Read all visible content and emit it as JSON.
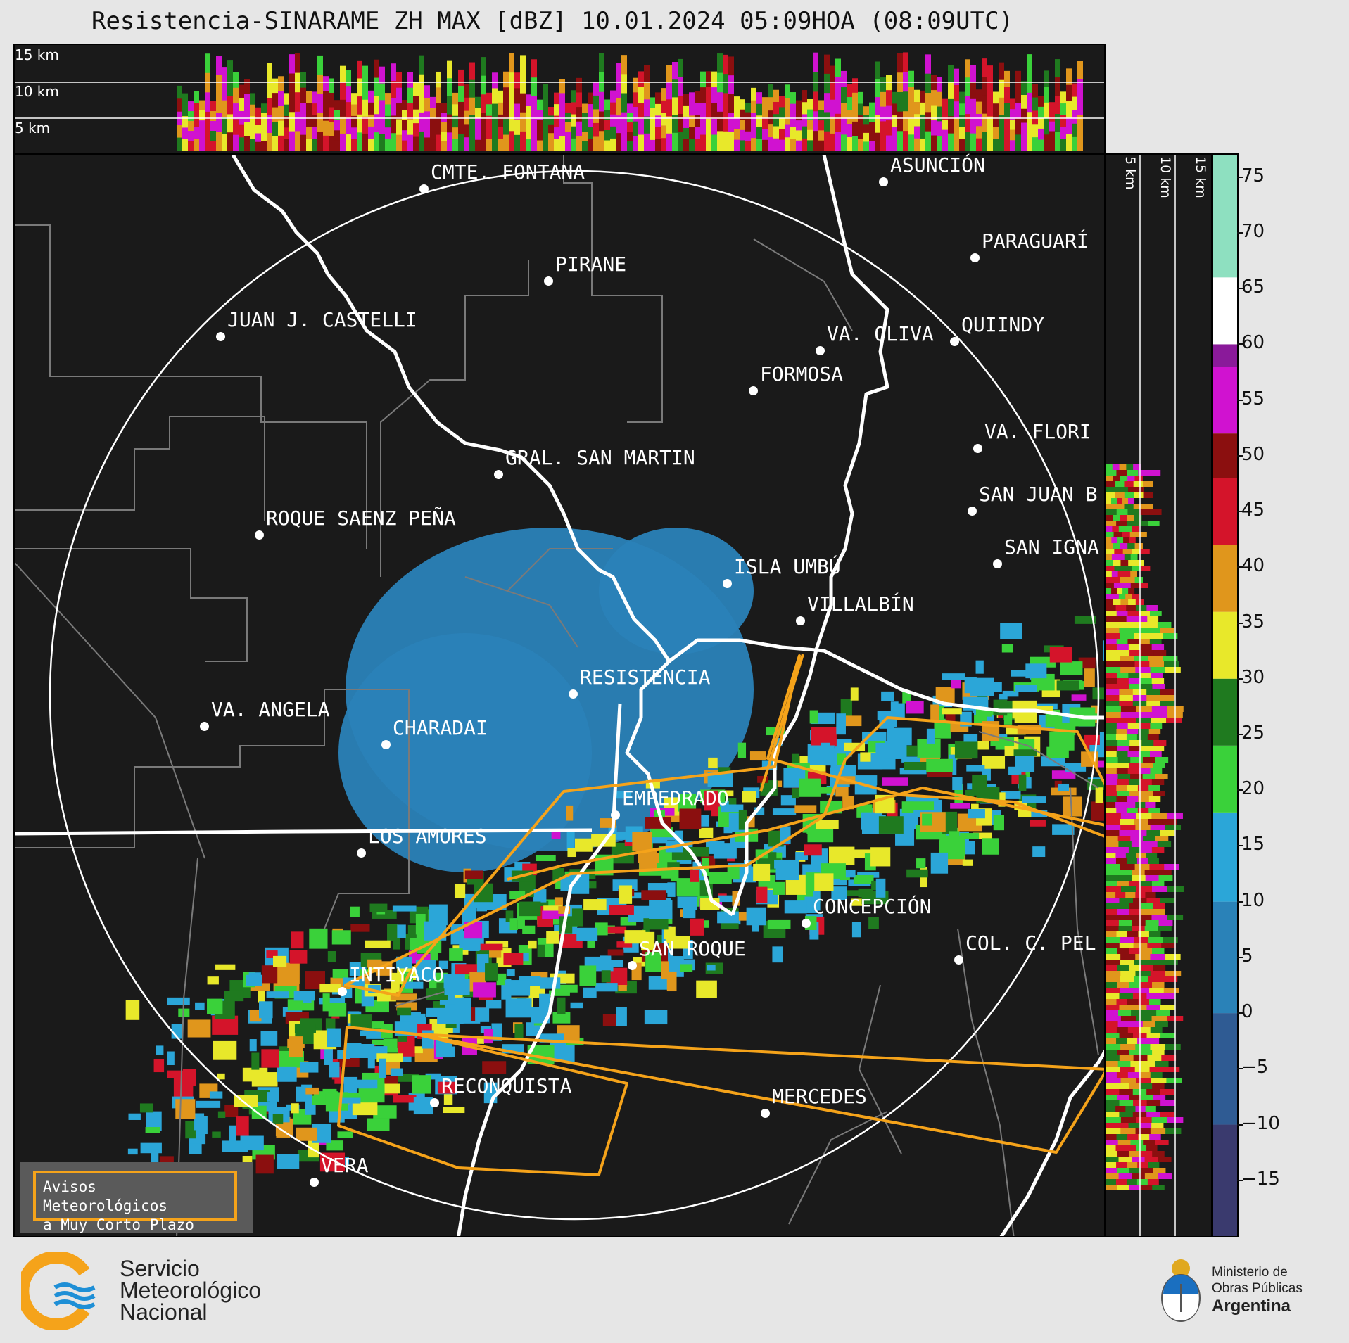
{
  "title": "Resistencia-SINARAME ZH MAX [dBZ] 10.01.2024 05:09HOA (08:09UTC)",
  "top_profile": {
    "labels": [
      "15 km",
      "10 km",
      "5 km"
    ]
  },
  "side_profile": {
    "labels": [
      "5 km",
      "10 km",
      "15 km"
    ]
  },
  "colorbar": {
    "ticks": [
      "75",
      "70",
      "65",
      "60",
      "55",
      "50",
      "45",
      "40",
      "35",
      "30",
      "25",
      "20",
      "15",
      "10",
      "5",
      "0",
      "−5",
      "−10",
      "−15"
    ],
    "bands": [
      {
        "from": -20,
        "to": -10,
        "color": "#3a3a6e"
      },
      {
        "from": -10,
        "to": 0,
        "color": "#2f5b93"
      },
      {
        "from": 0,
        "to": 10,
        "color": "#2a82b8"
      },
      {
        "from": 10,
        "to": 18,
        "color": "#2ba6d8"
      },
      {
        "from": 18,
        "to": 24,
        "color": "#3ad13a"
      },
      {
        "from": 24,
        "to": 30,
        "color": "#1f7a1f"
      },
      {
        "from": 30,
        "to": 36,
        "color": "#e8e82a"
      },
      {
        "from": 36,
        "to": 42,
        "color": "#e0961c"
      },
      {
        "from": 42,
        "to": 48,
        "color": "#d4142a"
      },
      {
        "from": 48,
        "to": 52,
        "color": "#8b0f0f"
      },
      {
        "from": 52,
        "to": 58,
        "color": "#d012d0"
      },
      {
        "from": 58,
        "to": 60,
        "color": "#8a1a9a"
      },
      {
        "from": 60,
        "to": 66,
        "color": "#ffffff"
      },
      {
        "from": 66,
        "to": 77,
        "color": "#8ee0c0"
      }
    ]
  },
  "cities": [
    {
      "name": "CMTE. FONTANA"
    },
    {
      "name": "ASUNCIÓN"
    },
    {
      "name": "PARAGUARÍ"
    },
    {
      "name": "PIRANE"
    },
    {
      "name": "JUAN J. CASTELLI"
    },
    {
      "name": "VA. OLIVA"
    },
    {
      "name": "QUIINDY"
    },
    {
      "name": "FORMOSA"
    },
    {
      "name": "VA. FLORI"
    },
    {
      "name": "GRAL. SAN MARTIN"
    },
    {
      "name": "SAN JUAN B"
    },
    {
      "name": "ROQUE SAENZ PEÑA"
    },
    {
      "name": "SAN IGNA"
    },
    {
      "name": "ISLA UMBÚ"
    },
    {
      "name": "VILLALBÍN"
    },
    {
      "name": "RESISTENCIA"
    },
    {
      "name": "VA. ANGELA"
    },
    {
      "name": "CHARADAI"
    },
    {
      "name": "EMPEDRADO"
    },
    {
      "name": "LOS AMORES"
    },
    {
      "name": "CONCEPCIÓN"
    },
    {
      "name": "SAN ROQUE"
    },
    {
      "name": "COL. C. PEL"
    },
    {
      "name": "INTIYACO"
    },
    {
      "name": "RECONQUISTA"
    },
    {
      "name": "MERCEDES"
    },
    {
      "name": "VERA"
    }
  ],
  "aviso": {
    "line1": "Avisos Meteorológicos",
    "line2": "a Muy Corto Plazo"
  },
  "footer": {
    "smn": [
      "Servicio",
      "Meteorológico",
      "Nacional"
    ],
    "ministry": [
      "Ministerio de",
      "Obras Públicas",
      "Argentina"
    ]
  },
  "colors": {
    "warning_polygon": "#f5a31a",
    "range_ring": "#ffffff",
    "border": "#ffffff",
    "admin_lines": "#7a7a7a"
  }
}
